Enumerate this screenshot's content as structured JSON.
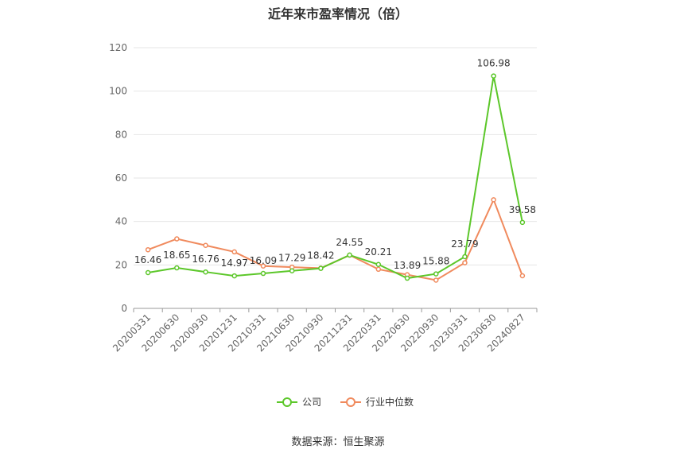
{
  "title": "近年来市盈率情况（倍）",
  "source": "数据来源：恒生聚源",
  "chart_data": {
    "type": "line",
    "categories": [
      "20200331",
      "20200630",
      "20200930",
      "20201231",
      "20210331",
      "20210630",
      "20210930",
      "20211231",
      "20220331",
      "20220630",
      "20220930",
      "20230331",
      "20230630",
      "20240827"
    ],
    "series": [
      {
        "name": "公司",
        "color": "#5cc72a",
        "values": [
          16.46,
          18.65,
          16.76,
          14.97,
          16.09,
          17.29,
          18.42,
          24.55,
          20.21,
          13.89,
          15.88,
          23.79,
          106.98,
          39.58
        ],
        "labels": [
          "16.46",
          "18.65",
          "16.76",
          "14.97",
          "16.09",
          "17.29",
          "18.42",
          "24.55",
          "20.21",
          "13.89",
          "15.88",
          "23.79",
          "106.98",
          "39.58"
        ]
      },
      {
        "name": "行业中位数",
        "color": "#f08a5d",
        "values": [
          27,
          32,
          29,
          26,
          19.5,
          19,
          18.5,
          24.5,
          18,
          15.5,
          13,
          21,
          50,
          15
        ]
      }
    ],
    "ylim": [
      0,
      120
    ],
    "yticks": [
      0,
      20,
      40,
      60,
      80,
      100,
      120
    ],
    "grid": true,
    "legend": "bottom-center"
  }
}
